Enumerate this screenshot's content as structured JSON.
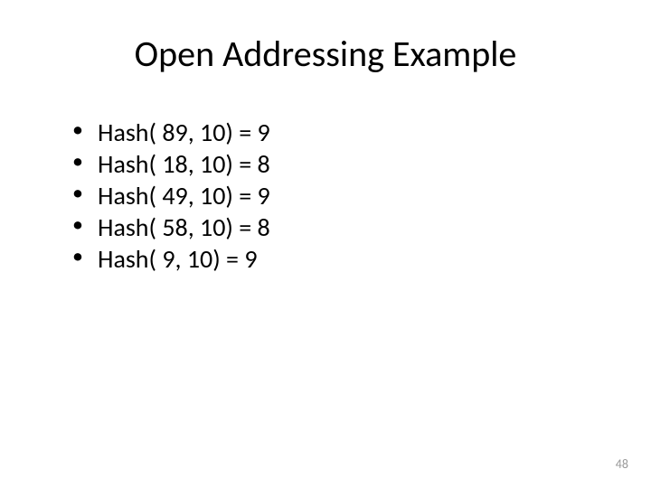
{
  "title": "Open Addressing Example",
  "bullets": [
    "Hash( 89, 10) = 9",
    "Hash( 18, 10) = 8",
    "Hash( 49, 10) = 9",
    "Hash( 58, 10) = 8",
    "Hash(   9, 10) = 9"
  ],
  "page_number": "48",
  "colors": {
    "background": "#ffffff",
    "text": "#000000",
    "page_number": "#9a9a9a"
  },
  "typography": {
    "font_family": "Calibri, Arial, sans-serif",
    "title_fontsize": 40,
    "bullet_fontsize": 28,
    "page_number_fontsize": 14
  }
}
